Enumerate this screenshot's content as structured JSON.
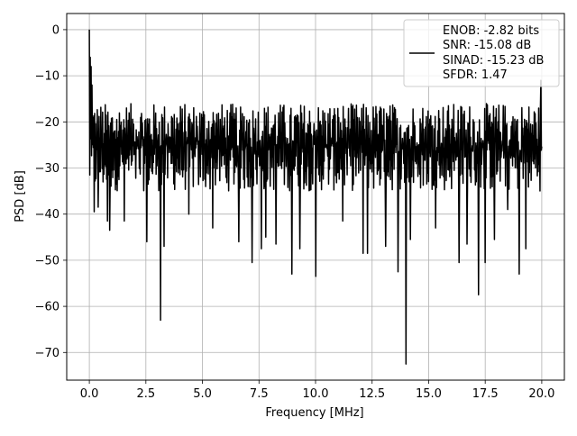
{
  "chart_data": {
    "type": "line",
    "title": "",
    "xlabel": "Frequency [MHz]",
    "ylabel": "PSD [dB]",
    "xlim": [
      -1.0,
      21.0
    ],
    "ylim": [
      -76.0,
      3.5
    ],
    "x_ticks": [
      0.0,
      2.5,
      5.0,
      7.5,
      10.0,
      12.5,
      15.0,
      17.5,
      20.0
    ],
    "x_tick_labels": [
      "0.0",
      "2.5",
      "5.0",
      "7.5",
      "10.0",
      "12.5",
      "15.0",
      "17.5",
      "20.0"
    ],
    "y_ticks": [
      0,
      -10,
      -20,
      -30,
      -40,
      -50,
      -60,
      -70
    ],
    "y_tick_labels": [
      "0",
      "−10",
      "−20",
      "−30",
      "−40",
      "−50",
      "−60",
      "−70"
    ],
    "grid": true,
    "legend_position": "upper-right",
    "legend_lines": [
      "ENOB: -2.82 bits",
      "SNR: -15.08 dB",
      "SINAD: -15.23 dB",
      "SFDR: 1.47"
    ],
    "series_color": "#000000",
    "grid_color": "#b0b0b0",
    "x_range": [
      0.0,
      20.0
    ],
    "sample_count": 1024,
    "noise_floor_band_db": [
      -35,
      -16
    ],
    "peaks": [
      {
        "x": 0.0,
        "y": 0.0
      },
      {
        "x": 0.04,
        "y": -6.0
      },
      {
        "x": 0.08,
        "y": -8.0
      },
      {
        "x": 0.12,
        "y": -12.0
      },
      {
        "x": 19.96,
        "y": -11.0
      }
    ],
    "dips": [
      {
        "x": 0.22,
        "y": -39.5
      },
      {
        "x": 0.4,
        "y": -38.5
      },
      {
        "x": 0.8,
        "y": -41.5
      },
      {
        "x": 0.9,
        "y": -43.5
      },
      {
        "x": 1.55,
        "y": -41.5
      },
      {
        "x": 2.55,
        "y": -46.0
      },
      {
        "x": 3.15,
        "y": -63.0
      },
      {
        "x": 3.3,
        "y": -47.0
      },
      {
        "x": 4.4,
        "y": -40.0
      },
      {
        "x": 5.45,
        "y": -43.0
      },
      {
        "x": 6.6,
        "y": -46.0
      },
      {
        "x": 7.2,
        "y": -50.5
      },
      {
        "x": 7.6,
        "y": -47.5
      },
      {
        "x": 7.8,
        "y": -45.0
      },
      {
        "x": 8.25,
        "y": -46.5
      },
      {
        "x": 8.95,
        "y": -53.0
      },
      {
        "x": 9.3,
        "y": -47.5
      },
      {
        "x": 10.0,
        "y": -53.5
      },
      {
        "x": 11.2,
        "y": -41.5
      },
      {
        "x": 12.1,
        "y": -48.5
      },
      {
        "x": 12.3,
        "y": -48.5
      },
      {
        "x": 13.1,
        "y": -47.0
      },
      {
        "x": 13.65,
        "y": -52.5
      },
      {
        "x": 14.0,
        "y": -72.5
      },
      {
        "x": 14.2,
        "y": -45.5
      },
      {
        "x": 15.3,
        "y": -43.0
      },
      {
        "x": 16.35,
        "y": -50.5
      },
      {
        "x": 16.7,
        "y": -46.5
      },
      {
        "x": 17.2,
        "y": -57.5
      },
      {
        "x": 17.5,
        "y": -50.5
      },
      {
        "x": 17.9,
        "y": -45.5
      },
      {
        "x": 18.5,
        "y": -39.0
      },
      {
        "x": 19.0,
        "y": -53.0
      },
      {
        "x": 19.3,
        "y": -47.5
      }
    ]
  }
}
